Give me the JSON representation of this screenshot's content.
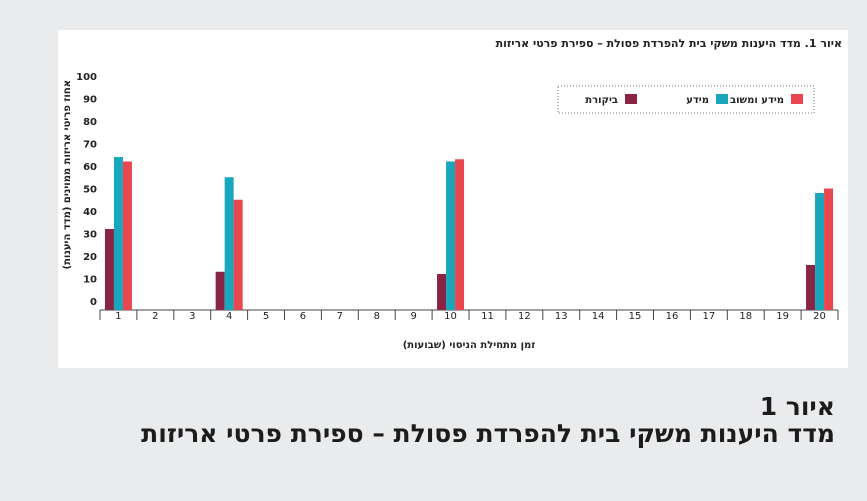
{
  "chart_data": {
    "type": "bar",
    "title": "איור 1. מדד היענות משקי בית להפרדת פסולת – ספירת פרטי אריזות",
    "y_label": "אחוז פריטי אריזות ממוינים (מדד היענות)",
    "x_label": "זמן מתחילת הניסוי (שבועות)",
    "categories": [
      "1",
      "2",
      "3",
      "4",
      "5",
      "6",
      "7",
      "8",
      "9",
      "10",
      "11",
      "12",
      "13",
      "14",
      "15",
      "16",
      "17",
      "18",
      "19",
      "20"
    ],
    "series": [
      {
        "name": "ביקורת",
        "color": "#8a2445",
        "values": [
          36,
          null,
          null,
          17,
          null,
          null,
          null,
          null,
          null,
          16,
          null,
          null,
          null,
          null,
          null,
          null,
          null,
          null,
          null,
          20
        ]
      },
      {
        "name": "מידע",
        "color": "#1aa6bb",
        "values": [
          68,
          null,
          null,
          59,
          null,
          null,
          null,
          null,
          null,
          66,
          null,
          null,
          null,
          null,
          null,
          null,
          null,
          null,
          null,
          52
        ]
      },
      {
        "name": "מידע ומשוב",
        "color": "#e8474f",
        "values": [
          66,
          null,
          null,
          49,
          null,
          null,
          null,
          null,
          null,
          67,
          null,
          null,
          null,
          null,
          null,
          null,
          null,
          null,
          null,
          54
        ]
      }
    ],
    "ylim": [
      0,
      100
    ],
    "yticks": [
      0,
      10,
      20,
      30,
      40,
      50,
      60,
      70,
      80,
      90,
      100
    ],
    "legend": "top-right"
  },
  "caption": {
    "label": "איור 1",
    "title": "מדד היענות משקי בית להפרדת פסולת – ספירת פרטי אריזות"
  }
}
